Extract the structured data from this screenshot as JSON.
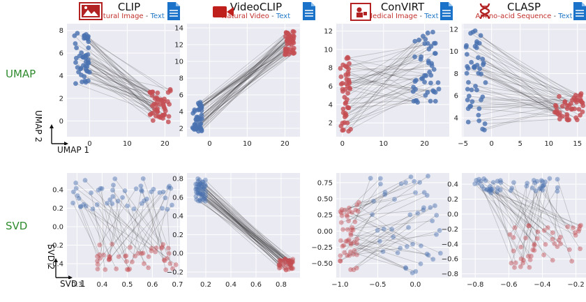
{
  "row_labels": [
    "UMAP",
    "SVD"
  ],
  "models": [
    {
      "name": "CLIP",
      "modality_a": "Natural Image",
      "sep": " - ",
      "modality_b": "Text",
      "icon": "picture-frame-icon"
    },
    {
      "name": "VideoCLIP",
      "modality_a": "Natural Video",
      "sep": " - ",
      "modality_b": "Text",
      "icon": "video-camera-icon"
    },
    {
      "name": "ConVIRT",
      "modality_a": "Medical Image",
      "sep": " - ",
      "modality_b": "Text",
      "icon": "medical-image-icon"
    },
    {
      "name": "CLASP",
      "modality_a": "Amino-acid Sequence",
      "sep": " - ",
      "modality_b": "Text",
      "icon": "dna-icon"
    }
  ],
  "text_doc_icon": "document-icon",
  "axis_tags": {
    "umap_x": "UMAP 1",
    "umap_y": "UMAP 2",
    "svd_x": "SVD 1",
    "svd_y": "SVD 2"
  },
  "colors": {
    "blue": "#4a72b0",
    "red": "#c44e52",
    "grid_bg": "#eaeaf2",
    "line": "#222222"
  },
  "chart_data": [
    {
      "type": "scatter",
      "model": "CLIP",
      "method": "UMAP",
      "xlim": [
        -6,
        24
      ],
      "ylim": [
        -1.4,
        8.6
      ],
      "xticks": [
        "0",
        "10",
        "20"
      ],
      "yticks": [
        "0",
        "2",
        "4",
        "6",
        "8"
      ],
      "blue_cluster": {
        "x": [
          -4,
          0
        ],
        "y": [
          3.3,
          7.9
        ]
      },
      "red_cluster": {
        "x": [
          16,
          21.5
        ],
        "y": [
          -0.2,
          2.8
        ]
      }
    },
    {
      "type": "scatter",
      "model": "VideoCLIP",
      "method": "UMAP",
      "xlim": [
        -6,
        24
      ],
      "ylim": [
        1,
        14.5
      ],
      "xticks": [
        "0",
        "10",
        "20"
      ],
      "yticks": [
        "2",
        "4",
        "6",
        "8",
        "10",
        "12",
        "14"
      ],
      "blue_cluster": {
        "x": [
          -4.5,
          -2
        ],
        "y": [
          1.6,
          5.2
        ]
      },
      "red_cluster": {
        "x": [
          20,
          22.5
        ],
        "y": [
          10.8,
          13.6
        ]
      }
    },
    {
      "type": "scatter",
      "model": "ConVIRT",
      "method": "UMAP",
      "xlim": [
        -1.5,
        26
      ],
      "ylim": [
        0.5,
        12.8
      ],
      "xticks": [
        "0",
        "10",
        "20"
      ],
      "yticks": [
        "2",
        "4",
        "6",
        "8",
        "10",
        "12"
      ],
      "red_cluster": {
        "x": [
          -0.5,
          2
        ],
        "y": [
          1,
          9.3
        ]
      },
      "blue_cluster": {
        "x": [
          17,
          23.5
        ],
        "y": [
          4,
          12.2
        ]
      }
    },
    {
      "type": "scatter",
      "model": "CLASP",
      "method": "UMAP",
      "xlim": [
        -5.2,
        16.5
      ],
      "ylim": [
        2.3,
        12.5
      ],
      "xticks": [
        "−5",
        "0",
        "5",
        "10",
        "15"
      ],
      "yticks": [
        "4",
        "6",
        "8",
        "10",
        "12"
      ],
      "blue_cluster": {
        "x": [
          -4.5,
          -1
        ],
        "y": [
          2.8,
          12
        ]
      },
      "red_cluster": {
        "x": [
          11,
          16
        ],
        "y": [
          3.8,
          6.2
        ]
      }
    },
    {
      "type": "scatter",
      "model": "CLIP",
      "method": "SVD",
      "xlim": [
        0.26,
        0.71
      ],
      "ylim": [
        -0.55,
        0.58
      ],
      "xticks": [
        "0.3",
        "0.4",
        "0.5",
        "0.6",
        "0.7"
      ],
      "yticks": [
        "−0.4",
        "−0.2",
        "0.0",
        "0.2",
        "0.4"
      ],
      "blue_cluster": {
        "x": [
          0.28,
          0.69
        ],
        "y": [
          0.18,
          0.53
        ]
      },
      "red_cluster": {
        "x": [
          0.38,
          0.7
        ],
        "y": [
          -0.47,
          -0.18
        ]
      }
    },
    {
      "type": "scatter",
      "model": "VideoCLIP",
      "method": "SVD",
      "xlim": [
        0.05,
        0.95
      ],
      "ylim": [
        -0.26,
        0.86
      ],
      "xticks": [
        "0.2",
        "0.4",
        "0.6",
        "0.8"
      ],
      "yticks": [
        "−0.2",
        "0.0",
        "0.2",
        "0.4",
        "0.6",
        "0.8"
      ],
      "blue_cluster": {
        "x": [
          0.12,
          0.2
        ],
        "y": [
          0.55,
          0.81
        ]
      },
      "red_cluster": {
        "x": [
          0.78,
          0.9
        ],
        "y": [
          -0.18,
          -0.06
        ]
      }
    },
    {
      "type": "scatter",
      "model": "ConVIRT",
      "method": "SVD",
      "xlim": [
        -1.05,
        0.45
      ],
      "ylim": [
        -0.72,
        0.9
      ],
      "xticks": [
        "−1.0",
        "−0.5",
        "0.0"
      ],
      "yticks": [
        "−0.50",
        "−0.25",
        "0.00",
        "0.25",
        "0.50",
        "0.75"
      ],
      "red_cluster": {
        "x": [
          -1.0,
          -0.75
        ],
        "y": [
          -0.6,
          0.45
        ]
      },
      "blue_cluster": {
        "x": [
          -0.6,
          0.35
        ],
        "y": [
          -0.65,
          0.87
        ]
      }
    },
    {
      "type": "scatter",
      "model": "CLASP",
      "method": "SVD",
      "xlim": [
        -0.88,
        -0.14
      ],
      "ylim": [
        -0.85,
        0.55
      ],
      "xticks": [
        "−0.8",
        "−0.6",
        "−0.4",
        "−0.2"
      ],
      "yticks": [
        "−0.8",
        "−0.6",
        "−0.4",
        "−0.2",
        "0.0",
        "0.2",
        "0.4"
      ],
      "blue_cluster": {
        "x": [
          -0.82,
          -0.3
        ],
        "y": [
          0.28,
          0.5
        ]
      },
      "red_cluster": {
        "x": [
          -0.6,
          -0.16
        ],
        "y": [
          -0.72,
          -0.14
        ]
      }
    }
  ]
}
